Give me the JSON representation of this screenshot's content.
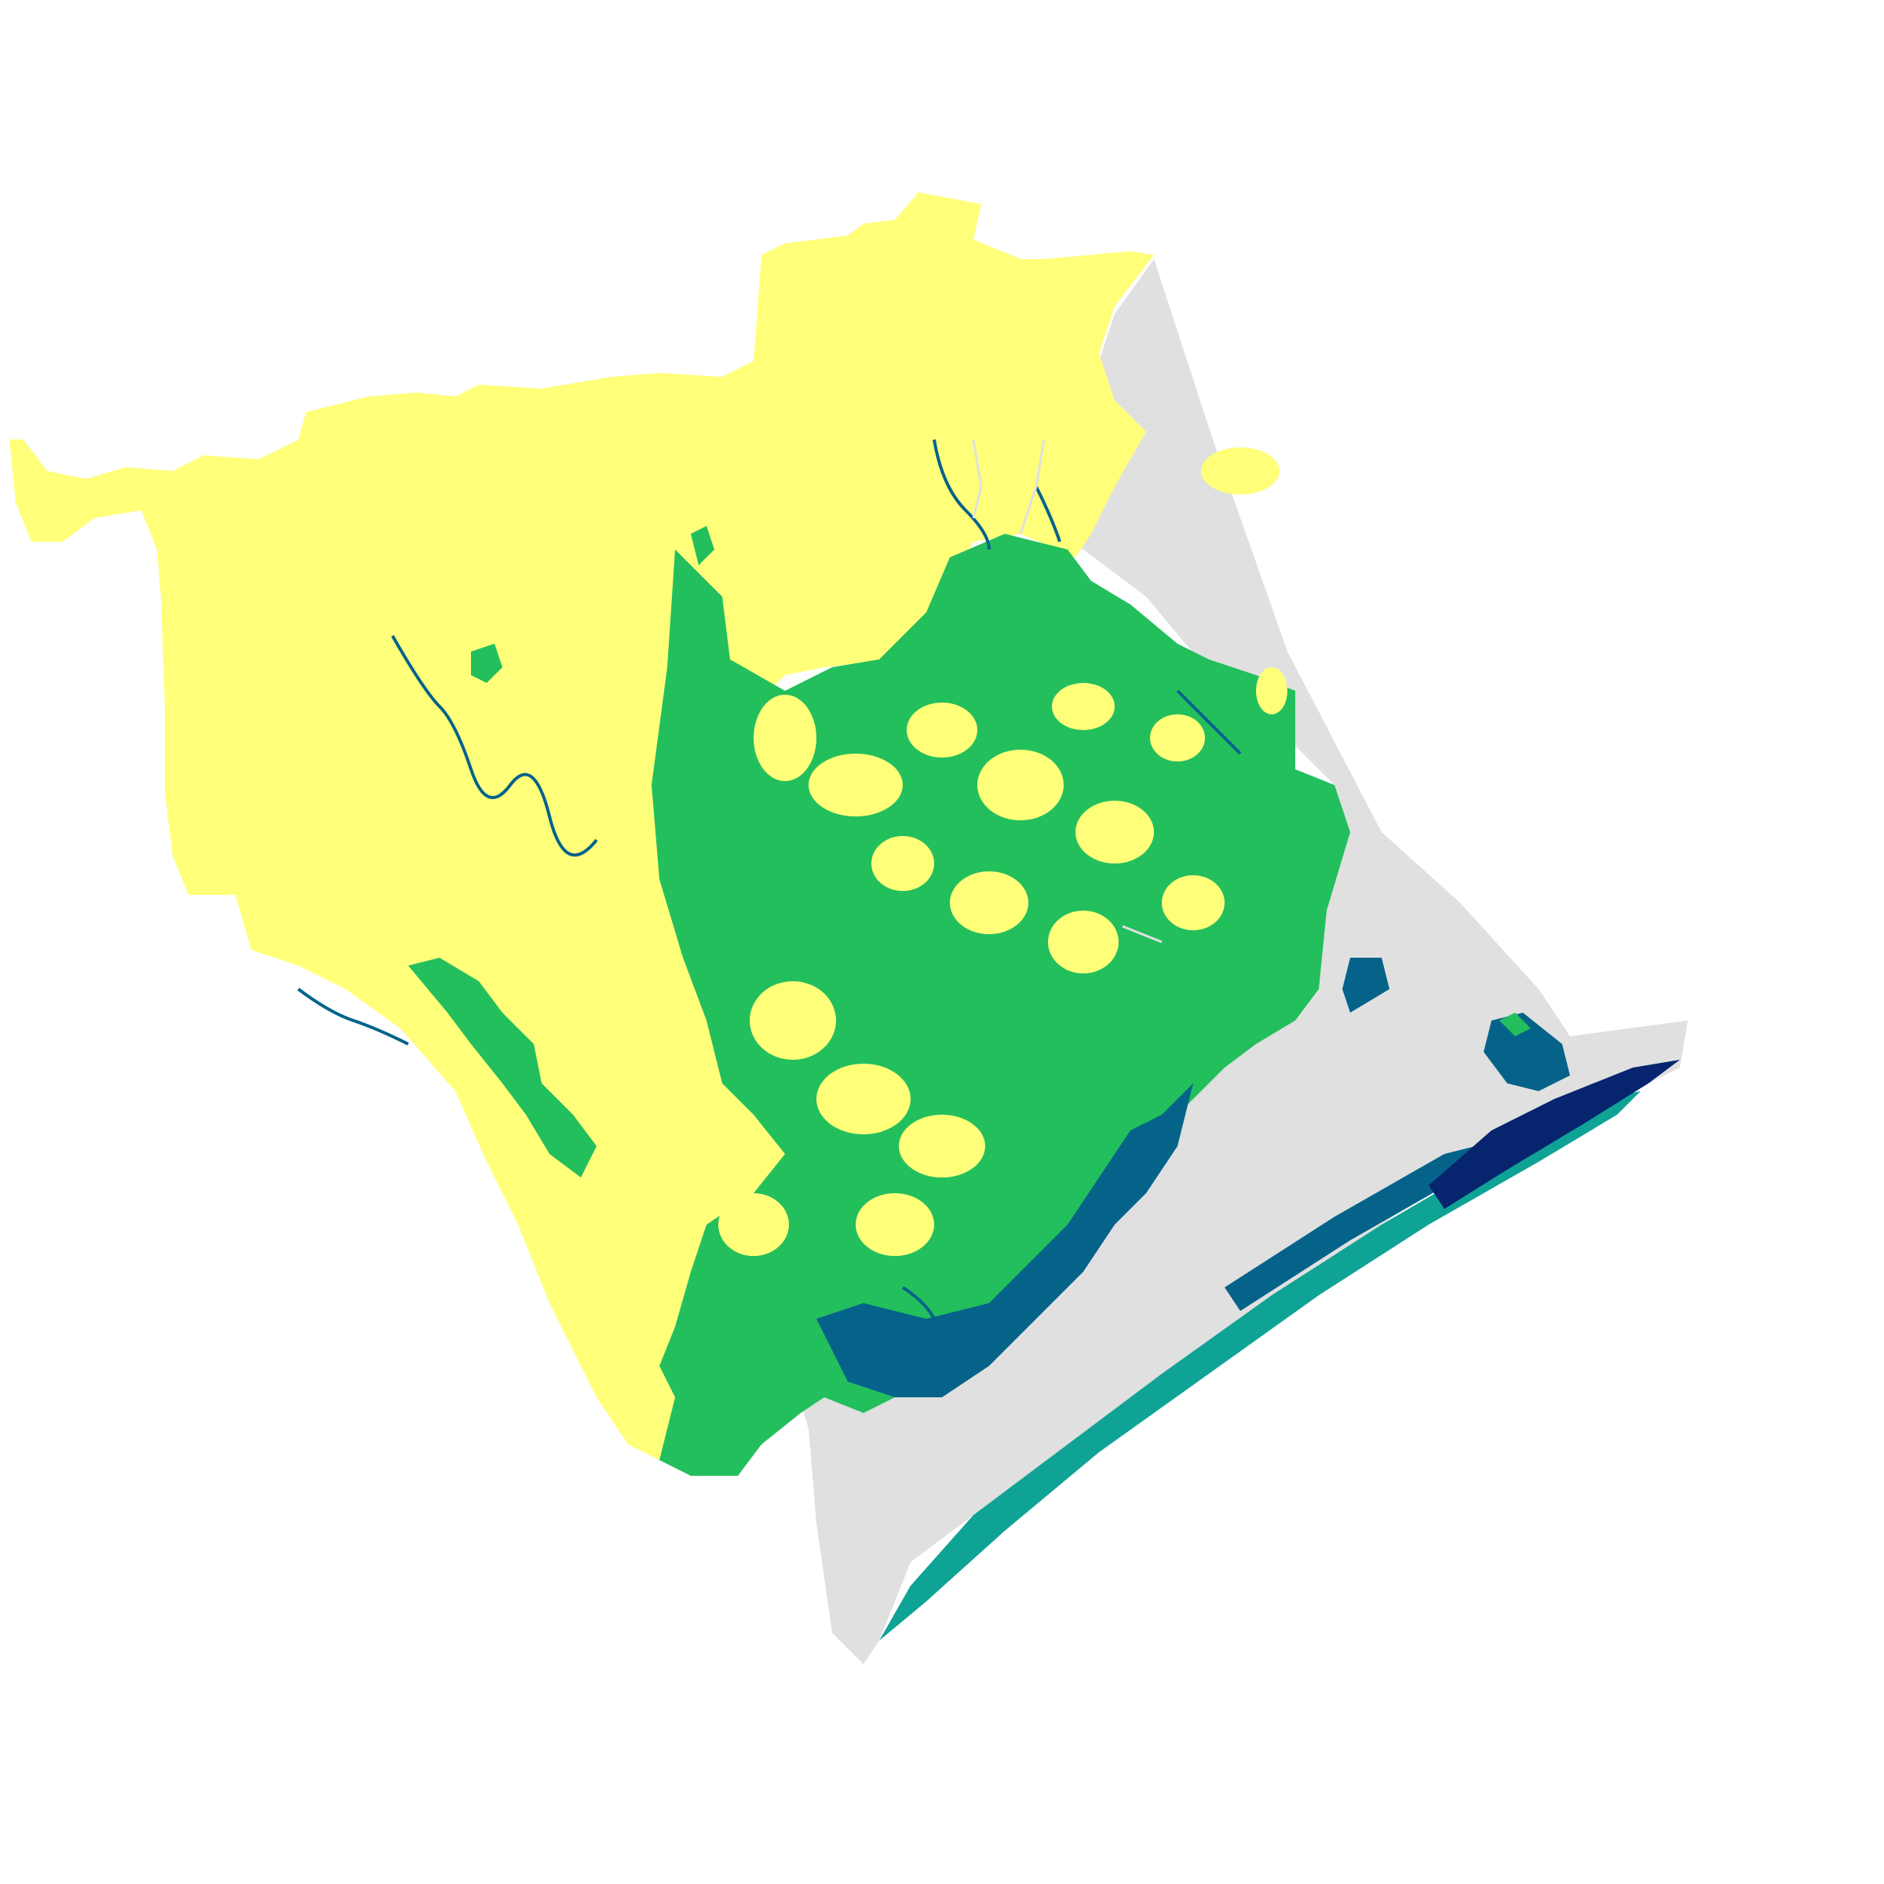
{
  "map": {
    "colors": {
      "background": "#ffffff",
      "water": "#e0e0e0",
      "zone_yellow": "#ffff7a",
      "zone_green": "#23bf5d",
      "zone_teal": "#0fa396",
      "zone_blue": "#05638a",
      "zone_navy": "#06256e"
    }
  }
}
